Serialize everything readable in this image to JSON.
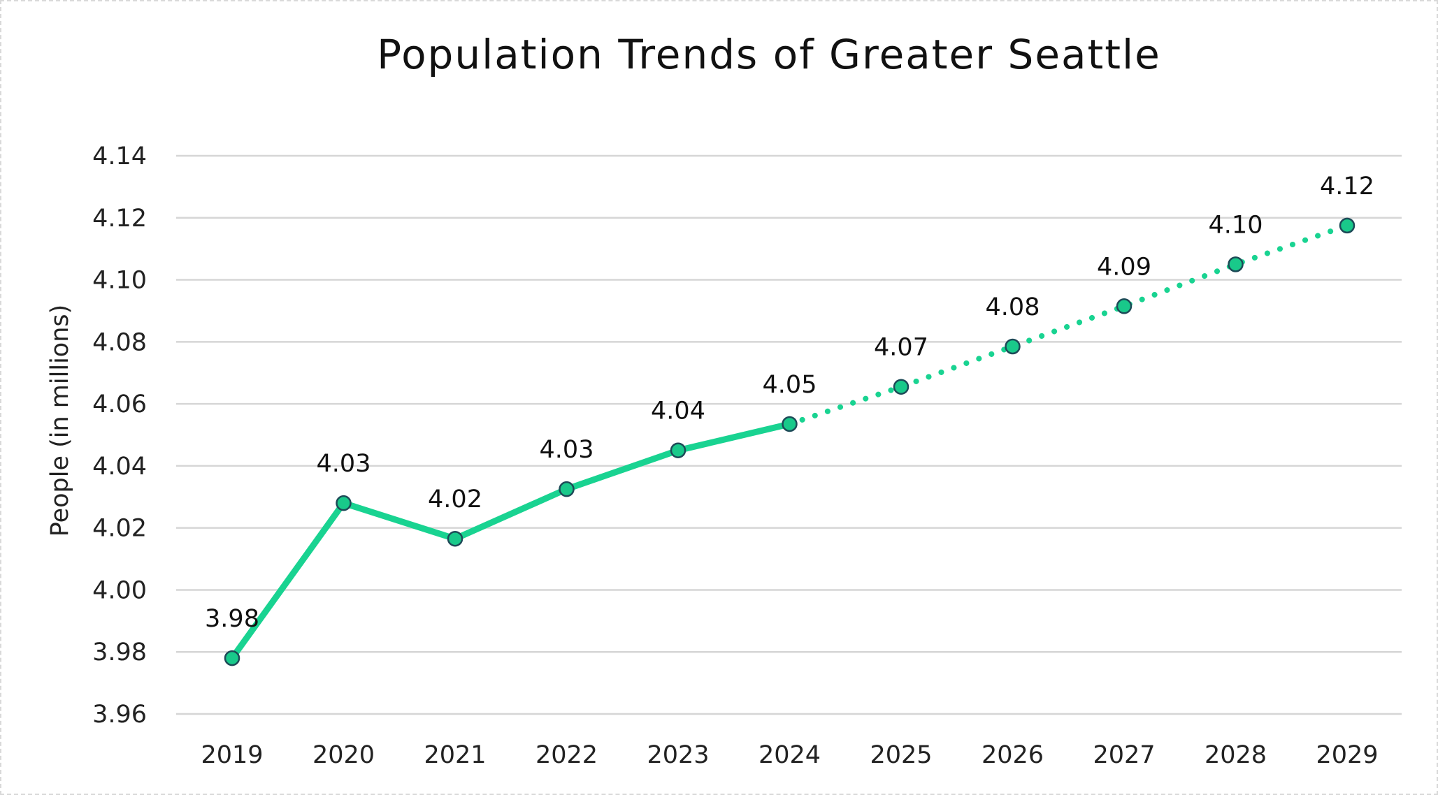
{
  "chart_data": {
    "type": "line",
    "title": "Population Trends of Greater Seattle",
    "xlabel": "",
    "ylabel": "People (in millions)",
    "categories": [
      "2019",
      "2020",
      "2021",
      "2022",
      "2023",
      "2024",
      "2025",
      "2026",
      "2027",
      "2028",
      "2029"
    ],
    "values": [
      3.978,
      4.028,
      4.0165,
      4.0325,
      4.045,
      4.0535,
      4.0655,
      4.0785,
      4.0915,
      4.105,
      4.1175
    ],
    "data_labels": [
      "3.98",
      "4.03",
      "4.02",
      "4.03",
      "4.04",
      "4.05",
      "4.07",
      "4.08",
      "4.09",
      "4.10",
      "4.12"
    ],
    "actual_through": "2024",
    "line_styles": {
      "historical": "solid",
      "projected": "dotted"
    },
    "ylim": [
      3.96,
      4.14
    ],
    "yticks": [
      "3.96",
      "3.98",
      "4.00",
      "4.02",
      "4.04",
      "4.06",
      "4.08",
      "4.10",
      "4.12",
      "4.14"
    ],
    "grid": "horizontal",
    "legend": "none",
    "colors": {
      "line": "#19d391",
      "marker_fill": "#19c98a",
      "marker_stroke": "#1d4a57",
      "grid": "#d6d6d6"
    }
  }
}
